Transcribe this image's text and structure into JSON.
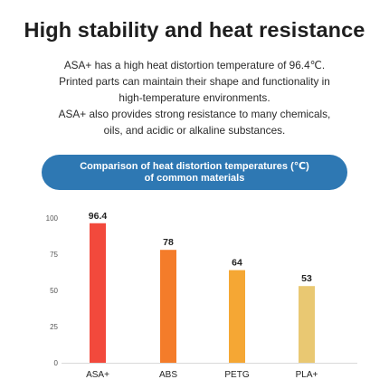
{
  "header": {
    "title": "High stability and heat resistance",
    "description_lines": [
      "ASA+ has a high heat distortion temperature of 96.4℃.",
      "Printed parts can maintain their shape and functionality in",
      "high-temperature environments.",
      "ASA+ also provides strong resistance to many chemicals,",
      "oils, and acidic or alkaline substances."
    ]
  },
  "banner": {
    "line1": "Comparison of heat distortion temperatures (℃)",
    "line2": "of common materials"
  },
  "chart_data": {
    "type": "bar",
    "categories": [
      "ASA+",
      "ABS",
      "PETG",
      "PLA+"
    ],
    "values": [
      96.4,
      78,
      64,
      53
    ],
    "value_labels": [
      "96.4",
      "78",
      "64",
      "53"
    ],
    "ylim": [
      0,
      100
    ],
    "yticks": [
      "0",
      "25",
      "50",
      "75",
      "100"
    ],
    "grid": false,
    "colors": [
      "#f2493c",
      "#f47c2a",
      "#f5a734",
      "#e9c872"
    ],
    "axis_color": "#d9d9d9"
  }
}
